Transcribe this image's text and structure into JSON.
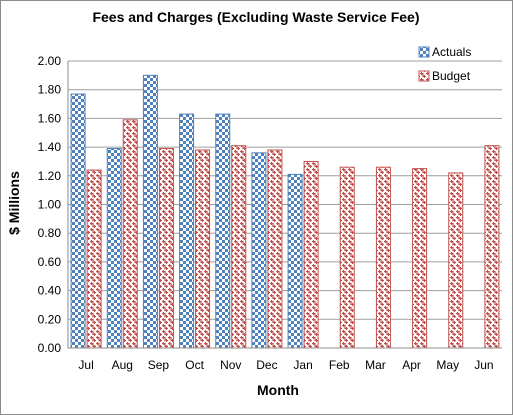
{
  "chart_data": {
    "type": "bar",
    "title": "Fees and Charges (Excluding  Waste Service Fee)",
    "xlabel": "Month",
    "ylabel": "$ Millions",
    "categories": [
      "Jul",
      "Aug",
      "Sep",
      "Oct",
      "Nov",
      "Dec",
      "Jan",
      "Feb",
      "Mar",
      "Apr",
      "May",
      "Jun"
    ],
    "series": [
      {
        "name": "Actuals",
        "values": [
          1.77,
          1.39,
          1.9,
          1.63,
          1.63,
          1.36,
          1.21,
          null,
          null,
          null,
          null,
          null
        ],
        "color": "#4f81bd",
        "pattern": "checker-blue"
      },
      {
        "name": "Budget",
        "values": [
          1.24,
          1.59,
          1.39,
          1.38,
          1.41,
          1.38,
          1.3,
          1.26,
          1.26,
          1.25,
          1.22,
          1.41
        ],
        "color": "#c0504d",
        "pattern": "weave-red"
      }
    ],
    "ylim": [
      0,
      2.0
    ],
    "yticks": [
      "0.00",
      "0.20",
      "0.40",
      "0.60",
      "0.80",
      "1.00",
      "1.20",
      "1.40",
      "1.60",
      "1.80",
      "2.00"
    ],
    "grid": true,
    "legend": "top-right"
  }
}
